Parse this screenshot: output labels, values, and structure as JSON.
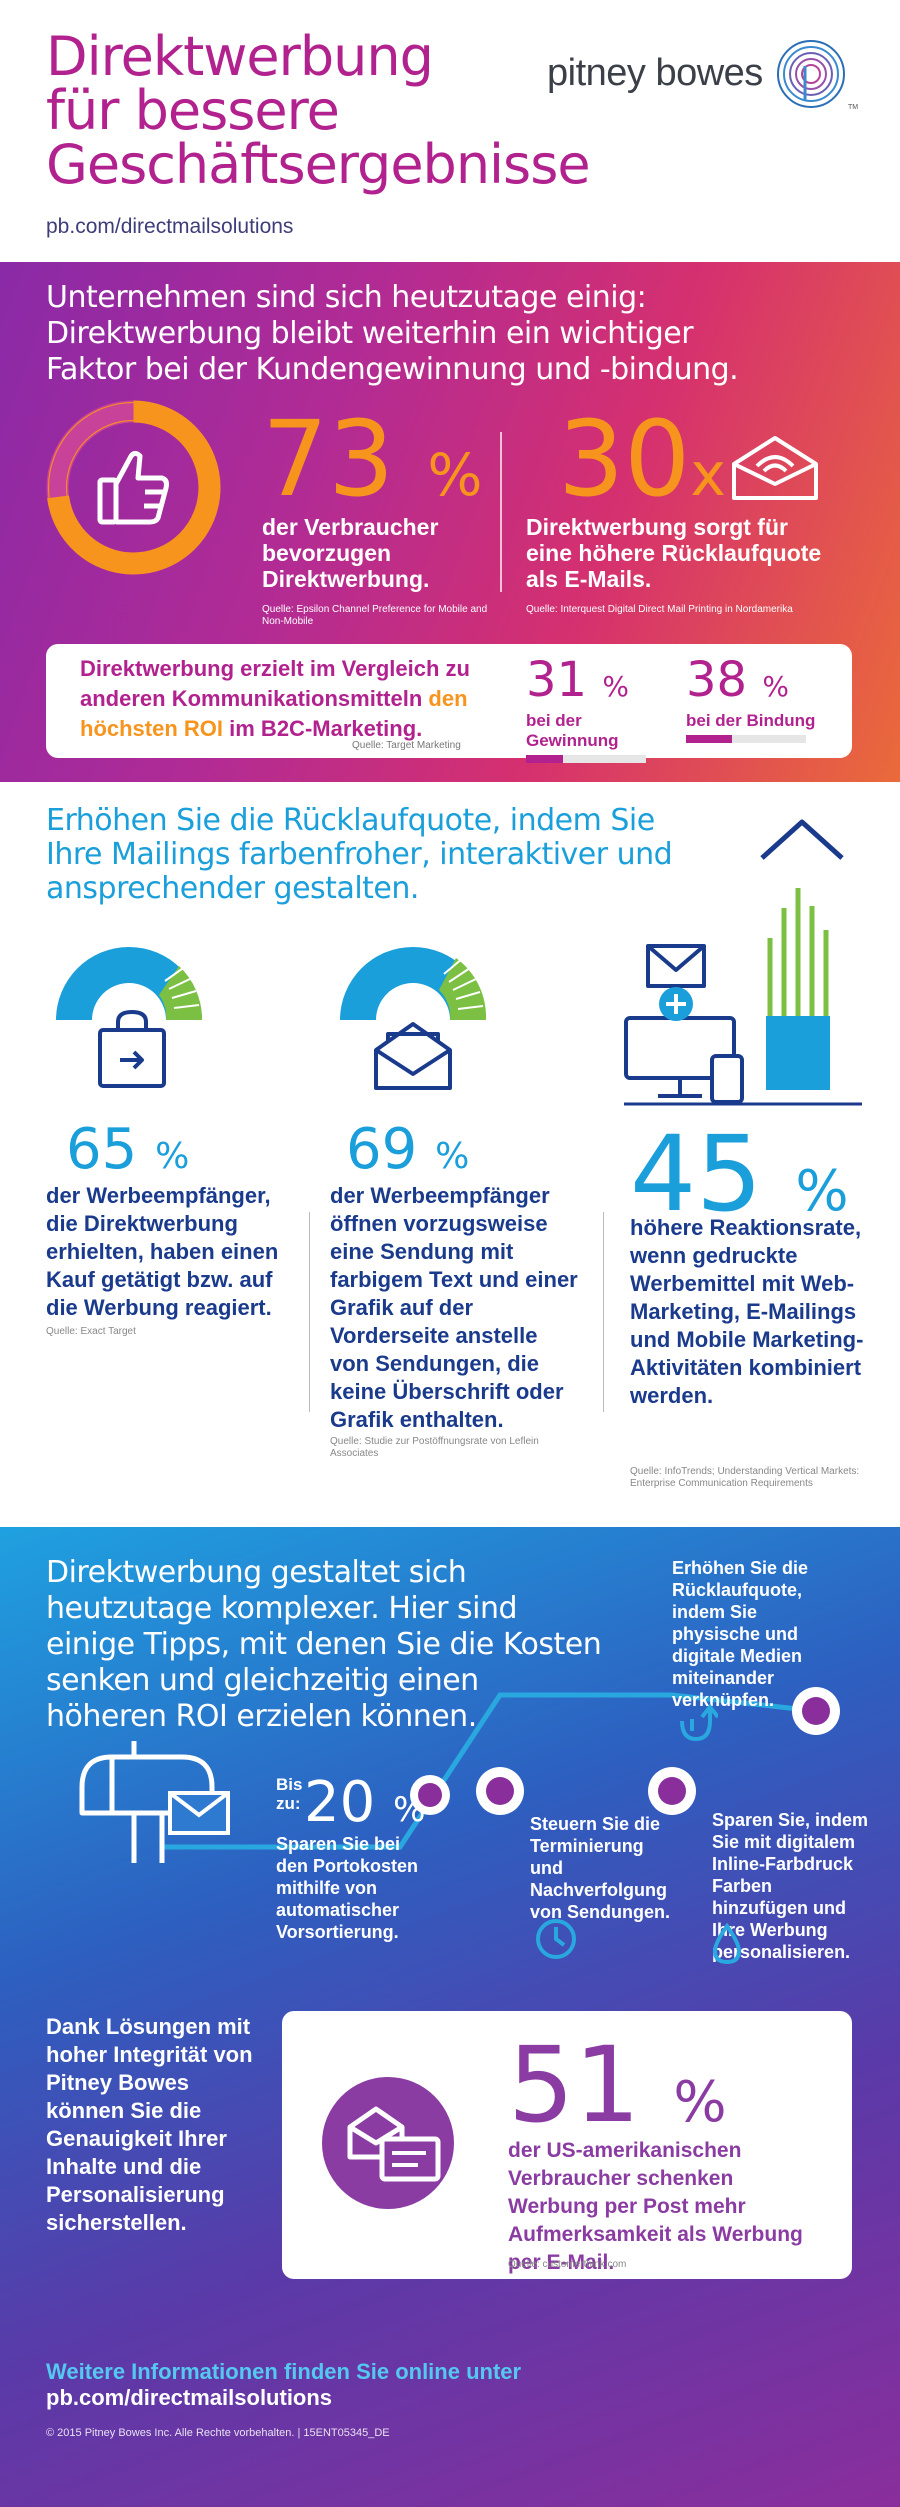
{
  "header": {
    "title_lines": [
      "Direktwerbung",
      "für bessere",
      "Geschäftsergebnisse"
    ],
    "url": "pb.com/directmailsolutions",
    "logo_text": "pitney bowes",
    "logo_tm": "TM"
  },
  "section1": {
    "intro": "Unternehmen sind sich heutzutage einig: Direktwerbung bleibt weiterhin ein wichtiger Faktor bei der Kundengewinnung und -bindung.",
    "stat1": {
      "value": "73",
      "unit": "%",
      "desc": "der Verbraucher bevorzugen Direktwerbung.",
      "source": "Quelle: Epsilon Channel Preference for Mobile and Non-Mobile"
    },
    "stat2": {
      "value": "30",
      "unit": "x",
      "desc": "Direktwerbung sorgt für eine höhere Rücklaufquote als E-Mails.",
      "source": "Quelle: Interquest Digital Direct Mail Printing in Nordamerika"
    },
    "roi": {
      "text_a": "Direktwerbung erzielt im Vergleich zu anderen Kommunikationsmitteln",
      "text_hl": "den höchsten ROI",
      "text_b": "im B2C-Marketing.",
      "source": "Quelle: Target Marketing",
      "items": [
        {
          "value": "31",
          "unit": "%",
          "label": "bei der Gewinnung",
          "fraction": 0.31
        },
        {
          "value": "38",
          "unit": "%",
          "label": "bei der Bindung",
          "fraction": 0.38
        }
      ]
    }
  },
  "section2": {
    "intro": "Erhöhen Sie die Rücklaufquote, indem Sie Ihre Mailings farbenfroher, interaktiver und ansprechender gestalten.",
    "stat1": {
      "value": "65",
      "unit": "%",
      "desc": "der Werbeempfänger, die Direktwerbung erhielten, haben einen Kauf getätigt bzw. auf die Werbung reagiert.",
      "source": "Quelle: Exact Target"
    },
    "stat2": {
      "value": "69",
      "unit": "%",
      "desc": "der Werbeempfänger öffnen vorzugsweise eine Sendung mit farbigem Text und einer Grafik auf der Vorderseite anstelle von Sendungen, die keine Überschrift oder Grafik enthalten.",
      "source": "Quelle: Studie zur Postöffnungsrate von Leflein Associates"
    },
    "stat3": {
      "value": "45",
      "unit": "%",
      "desc": "höhere Reaktionsrate, wenn gedruckte Werbemittel mit Web-Marketing, E-Mailings und Mobile Marketing-Aktivitäten kombiniert werden.",
      "source": "Quelle: InfoTrends; Understanding Vertical Markets: Enterprise Communication Requirements"
    }
  },
  "section3": {
    "intro": "Direktwerbung gestaltet sich heutzutage komplexer. Hier sind einige Tipps, mit denen Sie die Kosten senken und gleichzeitig einen höheren ROI erzielen können.",
    "tip_bis": "Bis zu:",
    "tip1": {
      "value": "20",
      "unit": "%",
      "desc": "Sparen Sie bei den Portokosten mithilfe von automatischer Vorsortierung."
    },
    "tip2": "Steuern Sie die Terminierung und Nachverfolgung von Sendungen.",
    "tip3": "Sparen Sie, indem Sie mit digitalem Inline-Farbdruck Farben hinzufügen und Ihre Werbung personalisieren.",
    "tip4": "Erhöhen Sie die Rücklaufquote, indem Sie physische und digitale Medien miteinander verknüpfen.",
    "left_text": "Dank Lösungen mit hoher Integrität von Pitney Bowes können Sie die Genauigkeit Ihrer Inhalte und die Personalisierung sicherstellen.",
    "stat51": {
      "value": "51",
      "unit": "%",
      "desc": "der US-amerikanischen Verbraucher schenken Werbung per Post mehr Aufmerksamkeit als Werbung per E-Mail.",
      "source": "Quelle: customerthink.com"
    },
    "more_a": "Weitere Informationen finden Sie online unter",
    "more_url": "pb.com/directmailsolutions",
    "copyright": "© 2015 Pitney Bowes Inc. Alle Rechte vorbehalten.  |  15ENT05345_DE"
  },
  "colors": {
    "magenta": "#b2228f",
    "orange": "#f7941d",
    "blue": "#1a9fdb",
    "navy": "#1a3a8c",
    "green": "#7bc043",
    "purple": "#8a3ca2"
  }
}
